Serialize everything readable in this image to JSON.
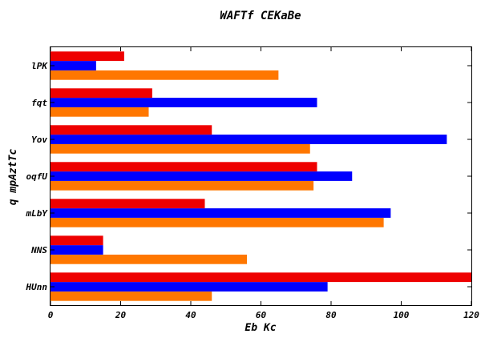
{
  "chart_data": {
    "type": "bar",
    "orientation": "horizontal",
    "title": "WAFTf CEKaBe",
    "xlabel": "Eb Kc",
    "ylabel": "q mpAztTc",
    "categories": [
      "HUnn",
      "NNS",
      "mLbY",
      "oqfU",
      "Yov",
      "fqt",
      "lPK"
    ],
    "series": [
      {
        "color": "#ff7700",
        "values": [
          46,
          56,
          95,
          75,
          74,
          28,
          65
        ]
      },
      {
        "color": "#0000ff",
        "values": [
          79,
          15,
          97,
          86,
          113,
          76,
          13
        ]
      },
      {
        "color": "#ee0000",
        "values": [
          121,
          15,
          44,
          76,
          46,
          29,
          21
        ]
      }
    ],
    "xlim": [
      0,
      120
    ],
    "xticks": [
      0,
      20,
      40,
      60,
      80,
      100,
      120
    ],
    "grid": false,
    "legend": "none"
  }
}
